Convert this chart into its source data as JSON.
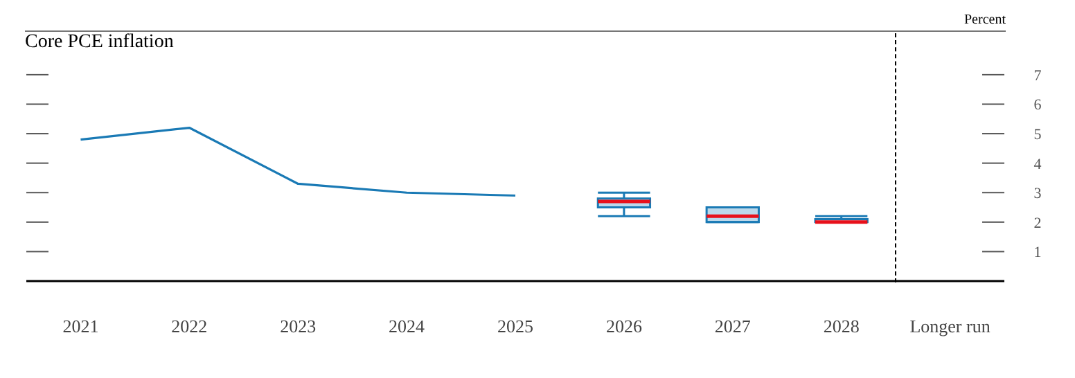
{
  "chart_data": {
    "type": "line",
    "title": "Core PCE inflation",
    "ylabel": "Percent",
    "categories": [
      "2021",
      "2022",
      "2023",
      "2024",
      "2025",
      "2026",
      "2027",
      "2028",
      "Longer run"
    ],
    "series": [
      {
        "color": "#1a7ab5",
        "values": [
          4.8,
          5.2,
          3.3,
          3.0,
          2.9,
          null,
          null,
          null,
          null
        ]
      },
      {
        "type": "box",
        "color": "#1a7ab5",
        "boxes": [
          null,
          null,
          null,
          null,
          null,
          {
            "low": 2.2,
            "q1": 2.5,
            "median": 2.7,
            "q3": 2.8,
            "high": 3.0
          },
          {
            "low": 2.0,
            "q1": 2.0,
            "median": 2.2,
            "q3": 2.5,
            "high": 2.5
          },
          {
            "low": 2.0,
            "q1": 2.0,
            "median": 2.0,
            "q3": 2.1,
            "high": 2.2
          },
          null
        ]
      }
    ],
    "ylim": [
      0,
      8.5
    ],
    "yticks": [
      1,
      2,
      3,
      4,
      5,
      6,
      7
    ],
    "marker": "none"
  }
}
